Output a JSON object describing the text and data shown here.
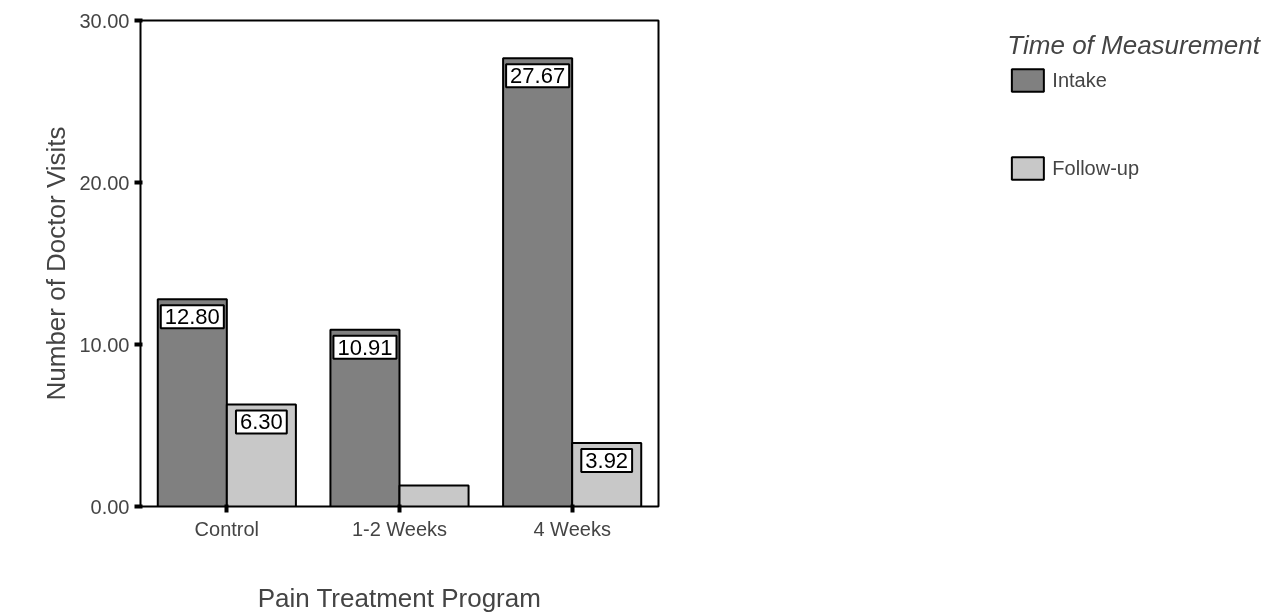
{
  "chart_data": {
    "type": "bar",
    "xlabel": "Pain Treatment Program",
    "ylabel": "Number of Doctor Visits",
    "legend_title": "Time of Measurement",
    "categories": [
      "Control",
      "1-2 Weeks",
      "4 Weeks"
    ],
    "series": [
      {
        "name": "Intake",
        "color": "#808080",
        "values": [
          12.8,
          10.91,
          27.67
        ],
        "value_labels": [
          "12.80",
          "10.91",
          "27.67"
        ]
      },
      {
        "name": "Follow-up",
        "color": "#c8c8c8",
        "values": [
          6.3,
          1.3,
          3.92
        ],
        "value_labels": [
          "6.30",
          null,
          "3.92"
        ]
      }
    ],
    "ylim": [
      0,
      30
    ],
    "yticks": [
      "0.00",
      "20.00",
      "10.00",
      "30.00"
    ],
    "grid": false,
    "legend": "right"
  }
}
